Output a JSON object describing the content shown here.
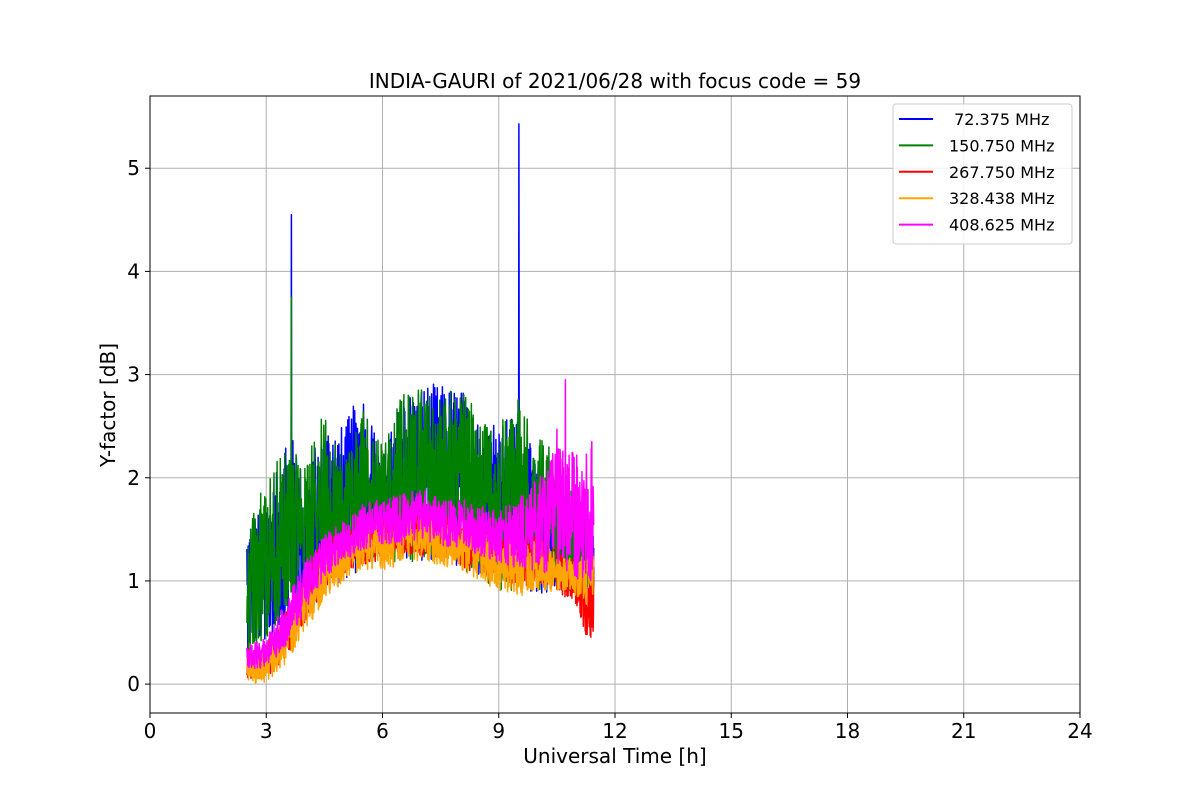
{
  "chart_data": {
    "type": "line",
    "title": "INDIA-GAURI of 2021/06/28 with focus code = 59",
    "xlabel": "Universal Time [h]",
    "ylabel": "Y-factor [dB]",
    "xlim": [
      0,
      24
    ],
    "ylim": [
      -0.28,
      5.7
    ],
    "xticks": [
      0,
      3,
      6,
      9,
      12,
      15,
      18,
      21,
      24
    ],
    "xtick_labels": [
      "0",
      "3",
      "6",
      "9",
      "12",
      "15",
      "18",
      "21",
      "24"
    ],
    "yticks": [
      0,
      1,
      2,
      3,
      4,
      5
    ],
    "ytick_labels": [
      "0",
      "1",
      "2",
      "3",
      "4",
      "5"
    ],
    "grid": true,
    "legend_position": "top-right",
    "series": [
      {
        "name": " 72.375 MHz",
        "color": "#0000ff",
        "envelope": {
          "x": [
            2.5,
            3.0,
            3.6,
            4.0,
            4.5,
            5.0,
            5.5,
            6.0,
            6.5,
            7.0,
            7.5,
            8.0,
            8.5,
            9.0,
            9.5,
            10.0,
            10.5,
            11.0,
            11.45
          ],
          "lower": [
            0.3,
            0.4,
            0.6,
            0.8,
            0.9,
            1.0,
            1.1,
            1.2,
            1.2,
            1.2,
            1.2,
            1.1,
            1.0,
            0.95,
            0.9,
            0.85,
            0.9,
            0.9,
            0.9
          ],
          "upper": [
            1.6,
            1.7,
            2.5,
            2.0,
            2.6,
            2.5,
            2.9,
            2.2,
            2.8,
            2.95,
            2.9,
            2.9,
            2.6,
            2.5,
            2.7,
            2.1,
            1.9,
            1.7,
            1.5
          ]
        },
        "spikes": [
          {
            "x": 3.65,
            "y": 4.55
          },
          {
            "x": 9.52,
            "y": 5.43
          }
        ]
      },
      {
        "name": "150.750 MHz",
        "color": "#008000",
        "envelope": {
          "x": [
            2.5,
            3.0,
            3.6,
            4.0,
            4.5,
            5.0,
            5.5,
            6.0,
            6.5,
            7.0,
            7.5,
            8.0,
            8.5,
            9.0,
            9.5,
            10.0,
            10.5,
            11.0,
            11.45
          ],
          "lower": [
            0.3,
            0.4,
            0.7,
            0.9,
            1.0,
            1.1,
            1.2,
            1.2,
            1.1,
            1.2,
            1.2,
            1.1,
            1.0,
            0.9,
            0.9,
            0.9,
            0.9,
            0.9,
            0.9
          ],
          "upper": [
            1.6,
            2.0,
            2.4,
            2.1,
            2.7,
            2.2,
            2.7,
            2.4,
            2.8,
            2.9,
            2.8,
            2.9,
            2.7,
            2.5,
            2.8,
            2.6,
            2.1,
            1.8,
            1.6
          ]
        },
        "spikes": [
          {
            "x": 3.65,
            "y": 3.75
          }
        ]
      },
      {
        "name": "267.750 MHz",
        "color": "#ff0000",
        "envelope": {
          "x": [
            2.5,
            3.0,
            3.5,
            4.0,
            4.5,
            5.0,
            5.5,
            6.0,
            6.5,
            7.0,
            7.5,
            8.0,
            8.5,
            9.0,
            9.5,
            10.0,
            10.5,
            11.0,
            11.3,
            11.45
          ],
          "lower": [
            0.05,
            0.05,
            0.25,
            0.6,
            0.9,
            1.05,
            1.15,
            1.2,
            1.25,
            1.25,
            1.2,
            1.15,
            1.05,
            1.0,
            0.95,
            0.95,
            0.9,
            0.75,
            0.4,
            0.5
          ],
          "upper": [
            0.35,
            0.4,
            0.7,
            1.1,
            1.4,
            1.5,
            1.6,
            1.65,
            1.7,
            1.7,
            1.65,
            1.6,
            1.55,
            1.5,
            1.5,
            1.45,
            1.35,
            1.2,
            1.0,
            1.3
          ]
        },
        "spikes": []
      },
      {
        "name": "328.438 MHz",
        "color": "#ffa500",
        "envelope": {
          "x": [
            2.5,
            3.0,
            3.5,
            4.0,
            4.5,
            5.0,
            5.5,
            6.0,
            6.5,
            7.0,
            7.5,
            8.0,
            8.5,
            9.0,
            9.5,
            10.0,
            10.5,
            11.0,
            11.45
          ],
          "lower": [
            0.0,
            0.0,
            0.2,
            0.5,
            0.8,
            1.0,
            1.1,
            1.1,
            1.15,
            1.2,
            1.15,
            1.1,
            1.0,
            0.9,
            0.85,
            0.9,
            0.9,
            0.85,
            0.7
          ],
          "upper": [
            0.3,
            0.35,
            0.65,
            1.0,
            1.3,
            1.45,
            1.55,
            1.6,
            1.6,
            1.65,
            1.6,
            1.55,
            1.5,
            1.45,
            1.4,
            1.4,
            1.3,
            1.2,
            1.4
          ]
        },
        "spikes": []
      },
      {
        "name": "408.625 MHz",
        "color": "#ff00ff",
        "envelope": {
          "x": [
            2.5,
            3.0,
            3.5,
            4.0,
            4.5,
            5.0,
            5.5,
            6.0,
            6.5,
            7.0,
            7.5,
            8.0,
            8.5,
            9.0,
            9.5,
            10.0,
            10.5,
            11.0,
            11.45
          ],
          "lower": [
            0.15,
            0.15,
            0.35,
            0.7,
            1.0,
            1.2,
            1.3,
            1.35,
            1.35,
            1.4,
            1.35,
            1.3,
            1.25,
            1.15,
            1.1,
            1.1,
            1.05,
            1.0,
            1.0
          ],
          "upper": [
            0.4,
            0.45,
            0.8,
            1.2,
            1.45,
            1.6,
            1.75,
            1.8,
            1.85,
            1.9,
            1.8,
            1.8,
            1.75,
            1.7,
            1.8,
            2.0,
            2.3,
            2.25,
            2.3
          ]
        },
        "spikes": [
          {
            "x": 10.72,
            "y": 2.95
          },
          {
            "x": 10.5,
            "y": 2.47
          },
          {
            "x": 11.4,
            "y": 2.35
          }
        ]
      }
    ]
  }
}
